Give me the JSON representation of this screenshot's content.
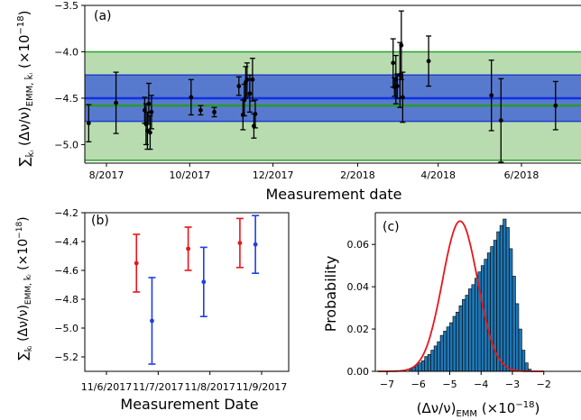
{
  "chart_data": [
    {
      "panel_label": "(a)",
      "type": "scatter",
      "xlabel": "Measurement date",
      "ylabel": "∑ k̂ᵢ (Δν/ν)EMM, k̂ᵢ (×10⁻¹⁸)",
      "ylim": [
        -5.2,
        -3.5
      ],
      "x_ticks": [
        "8/2017",
        "10/2017",
        "12/2017",
        "2/2018",
        "4/2018",
        "6/2018"
      ],
      "y_ticks": [
        "-3.5",
        "-4.0",
        "-4.5",
        "-5.0"
      ],
      "bands": [
        {
          "name": "green",
          "low": -5.17,
          "high": -4.0,
          "center": -4.58,
          "color": "#2ca02c"
        },
        {
          "name": "blue",
          "low": -4.75,
          "high": -4.25,
          "center": -4.5,
          "color": "#1f3fd0"
        }
      ],
      "points": [
        {
          "date": "2017-07-19",
          "y": -4.77,
          "err": 0.2
        },
        {
          "date": "2017-08-08",
          "y": -4.55,
          "err": 0.33
        },
        {
          "date": "2017-08-29",
          "y": -4.63,
          "err": 0.14
        },
        {
          "date": "2017-08-30",
          "y": -4.78,
          "err": 0.22
        },
        {
          "date": "2017-08-31",
          "y": -4.85,
          "err": 0.2
        },
        {
          "date": "2017-09-01",
          "y": -4.56,
          "err": 0.22
        },
        {
          "date": "2017-09-02",
          "y": -4.87,
          "err": 0.18
        },
        {
          "date": "2017-09-03",
          "y": -4.65,
          "err": 0.18
        },
        {
          "date": "2017-10-02",
          "y": -4.49,
          "err": 0.19
        },
        {
          "date": "2017-10-09",
          "y": -4.63,
          "err": 0.05
        },
        {
          "date": "2017-10-19",
          "y": -4.65,
          "err": 0.05
        },
        {
          "date": "2017-11-06",
          "y": -4.37,
          "err": 0.1
        },
        {
          "date": "2017-11-09",
          "y": -4.68,
          "err": 0.16
        },
        {
          "date": "2017-11-10",
          "y": -4.52,
          "err": 0.17
        },
        {
          "date": "2017-11-11",
          "y": -4.33,
          "err": 0.17
        },
        {
          "date": "2017-11-12",
          "y": -4.3,
          "err": 0.18
        },
        {
          "date": "2017-11-14",
          "y": -4.45,
          "err": 0.2
        },
        {
          "date": "2017-11-16",
          "y": -4.3,
          "err": 0.23
        },
        {
          "date": "2017-11-17",
          "y": -4.8,
          "err": 0.13
        },
        {
          "date": "2017-11-18",
          "y": -4.67,
          "err": 0.15
        },
        {
          "date": "2018-02-27",
          "y": -4.12,
          "err": 0.26
        },
        {
          "date": "2018-02-28",
          "y": -4.38,
          "err": 0.1
        },
        {
          "date": "2018-03-01",
          "y": -4.3,
          "err": 0.26
        },
        {
          "date": "2018-03-02",
          "y": -4.37,
          "err": 0.13
        },
        {
          "date": "2018-03-04",
          "y": -4.25,
          "err": 0.35
        },
        {
          "date": "2018-03-05",
          "y": -3.93,
          "err": 0.37
        },
        {
          "date": "2018-03-06",
          "y": -4.49,
          "err": 0.27
        },
        {
          "date": "2018-03-25",
          "y": -4.1,
          "err": 0.27
        },
        {
          "date": "2018-05-10",
          "y": -4.47,
          "err": 0.38
        },
        {
          "date": "2018-05-17",
          "y": -4.74,
          "err": 0.45
        },
        {
          "date": "2018-06-26",
          "y": -4.58,
          "err": 0.26
        }
      ]
    },
    {
      "panel_label": "(b)",
      "type": "scatter",
      "xlabel": "Measurement Date",
      "ylabel": "∑ k̂ᵢ (Δν/ν)EMM, k̂ᵢ (×10⁻¹⁸)",
      "ylim": [
        -5.3,
        -4.2
      ],
      "x_ticks": [
        "11/6/2017",
        "11/7/2017",
        "11/8/2017",
        "11/9/2017"
      ],
      "y_ticks": [
        "-4.2",
        "-4.4",
        "-4.6",
        "-4.8",
        "-5.0",
        "-5.2"
      ],
      "series": [
        {
          "name": "red",
          "color": "#e8161b",
          "x": [
            6.58,
            7.58,
            8.58
          ],
          "y": [
            -4.55,
            -4.45,
            -4.41
          ],
          "err": [
            0.2,
            0.15,
            0.17
          ]
        },
        {
          "name": "blue",
          "color": "#1f3fe0",
          "x": [
            6.88,
            7.88,
            8.88
          ],
          "y": [
            -4.95,
            -4.68,
            -4.42
          ],
          "err": [
            0.3,
            0.24,
            0.2
          ]
        }
      ]
    },
    {
      "panel_label": "(c)",
      "type": "bar",
      "xlabel": "(Δν/ν)EMM (×10⁻¹⁸)",
      "ylabel": "Probability",
      "xlim": [
        -7.3,
        -2
      ],
      "ylim": [
        0,
        0.075
      ],
      "x_ticks": [
        "-7",
        "-6",
        "-5",
        "-4",
        "-3",
        "-2"
      ],
      "y_ticks": [
        "0.00",
        "0.02",
        "0.04",
        "0.06"
      ],
      "histogram": {
        "bin_start": -6.3,
        "bin_width": 0.1,
        "color": "#1f77b4",
        "values": [
          0.001,
          0.002,
          0.003,
          0.004,
          0.005,
          0.007,
          0.008,
          0.01,
          0.012,
          0.014,
          0.017,
          0.019,
          0.021,
          0.023,
          0.026,
          0.028,
          0.031,
          0.034,
          0.036,
          0.039,
          0.041,
          0.044,
          0.047,
          0.05,
          0.053,
          0.056,
          0.059,
          0.062,
          0.066,
          0.069,
          0.072,
          0.068,
          0.058,
          0.045,
          0.032,
          0.02,
          0.01,
          0.004,
          0.001
        ]
      },
      "curve": {
        "name": "fit",
        "color": "#e8161b",
        "mean": -4.67,
        "sigma": 0.56,
        "peak": 0.071
      }
    }
  ]
}
